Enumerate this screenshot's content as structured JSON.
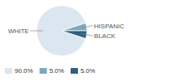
{
  "chart_data": {
    "type": "pie",
    "categories": [
      "WHITE",
      "HISPANIC",
      "BLACK"
    ],
    "values": [
      90.0,
      5.0,
      5.0
    ],
    "value_labels": [
      "90.0%",
      "5.0%",
      "5.0%"
    ],
    "colors": [
      "#dce6f0",
      "#7baabe",
      "#2e5f7e"
    ],
    "legend": "bottom"
  }
}
